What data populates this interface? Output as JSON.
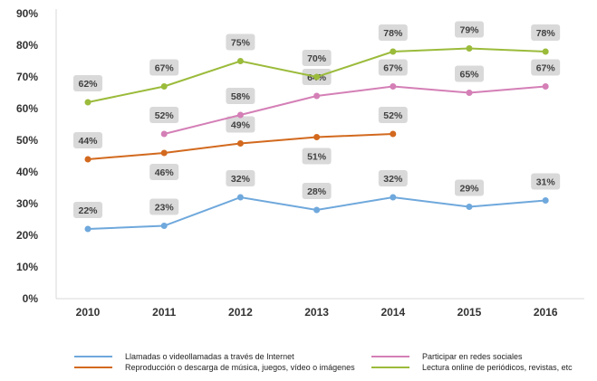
{
  "chart_data": {
    "type": "line",
    "title": "",
    "xlabel": "",
    "ylabel": "",
    "categories": [
      "2010",
      "2011",
      "2012",
      "2013",
      "2014",
      "2015",
      "2016"
    ],
    "y_ticks": [
      "0%",
      "10%",
      "20%",
      "30%",
      "40%",
      "50%",
      "60%",
      "70%",
      "80%",
      "90%"
    ],
    "ylim": [
      0,
      90
    ],
    "grid": false,
    "legend_position": "bottom",
    "series": [
      {
        "name": "Llamadas o videollamadas a través de Internet",
        "color": "#6fa8dc",
        "values": [
          22,
          23,
          32,
          28,
          32,
          29,
          31
        ]
      },
      {
        "name": "Reproducción o descarga de música, juegos, vídeo o imágenes",
        "color": "#d2691e",
        "values": [
          44,
          46,
          49,
          51,
          52,
          null,
          null
        ]
      },
      {
        "name": "Participar en redes sociales",
        "color": "#d47fb6",
        "values": [
          null,
          52,
          58,
          64,
          67,
          65,
          67
        ]
      },
      {
        "name": "Lectura online de periódicos, revistas, etc",
        "color": "#9bbb3b",
        "values": [
          62,
          67,
          75,
          70,
          78,
          79,
          78
        ]
      }
    ]
  }
}
